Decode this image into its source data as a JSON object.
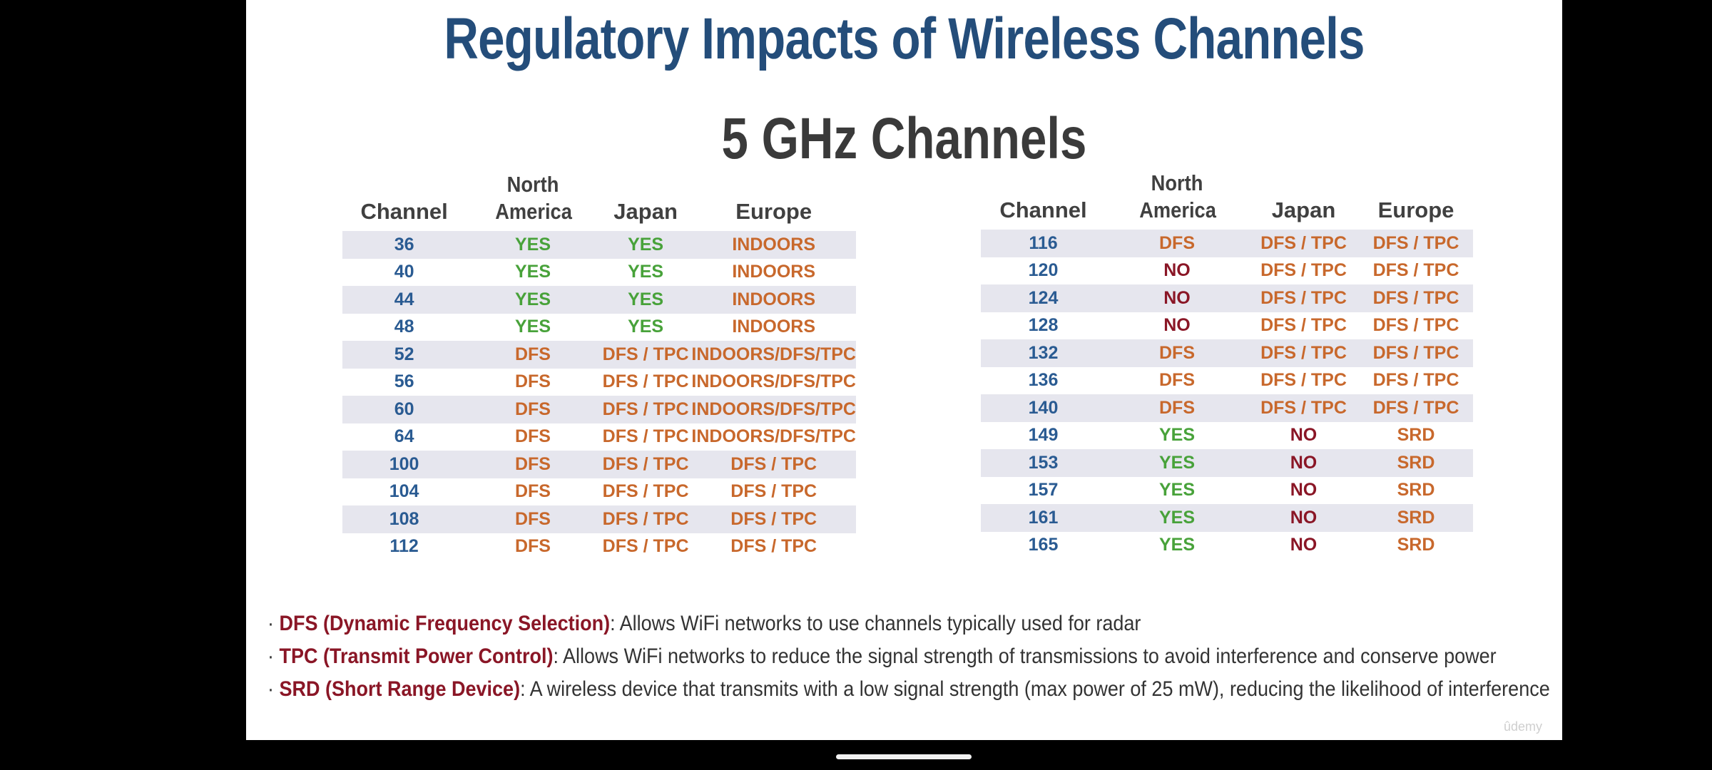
{
  "slide": {
    "title": "Regulatory Impacts of Wireless Channels",
    "subtitle": "5 GHz Channels",
    "watermark": "ûdemy"
  },
  "table_headers": {
    "channel": "Channel",
    "north_america": "North America",
    "japan": "Japan",
    "europe": "Europe"
  },
  "left_table": [
    {
      "channel": "36",
      "na": "YES",
      "jp": "YES",
      "eu": "INDOORS"
    },
    {
      "channel": "40",
      "na": "YES",
      "jp": "YES",
      "eu": "INDOORS"
    },
    {
      "channel": "44",
      "na": "YES",
      "jp": "YES",
      "eu": "INDOORS"
    },
    {
      "channel": "48",
      "na": "YES",
      "jp": "YES",
      "eu": "INDOORS"
    },
    {
      "channel": "52",
      "na": "DFS",
      "jp": "DFS / TPC",
      "eu": "INDOORS/DFS/TPC"
    },
    {
      "channel": "56",
      "na": "DFS",
      "jp": "DFS / TPC",
      "eu": "INDOORS/DFS/TPC"
    },
    {
      "channel": "60",
      "na": "DFS",
      "jp": "DFS / TPC",
      "eu": "INDOORS/DFS/TPC"
    },
    {
      "channel": "64",
      "na": "DFS",
      "jp": "DFS / TPC",
      "eu": "INDOORS/DFS/TPC"
    },
    {
      "channel": "100",
      "na": "DFS",
      "jp": "DFS / TPC",
      "eu": "DFS / TPC"
    },
    {
      "channel": "104",
      "na": "DFS",
      "jp": "DFS / TPC",
      "eu": "DFS / TPC"
    },
    {
      "channel": "108",
      "na": "DFS",
      "jp": "DFS / TPC",
      "eu": "DFS / TPC"
    },
    {
      "channel": "112",
      "na": "DFS",
      "jp": "DFS / TPC",
      "eu": "DFS / TPC"
    }
  ],
  "right_table": [
    {
      "channel": "116",
      "na": "DFS",
      "jp": "DFS / TPC",
      "eu": "DFS / TPC"
    },
    {
      "channel": "120",
      "na": "NO",
      "jp": "DFS / TPC",
      "eu": "DFS / TPC"
    },
    {
      "channel": "124",
      "na": "NO",
      "jp": "DFS / TPC",
      "eu": "DFS / TPC"
    },
    {
      "channel": "128",
      "na": "NO",
      "jp": "DFS / TPC",
      "eu": "DFS / TPC"
    },
    {
      "channel": "132",
      "na": "DFS",
      "jp": "DFS / TPC",
      "eu": "DFS / TPC"
    },
    {
      "channel": "136",
      "na": "DFS",
      "jp": "DFS / TPC",
      "eu": "DFS / TPC"
    },
    {
      "channel": "140",
      "na": "DFS",
      "jp": "DFS / TPC",
      "eu": "DFS / TPC"
    },
    {
      "channel": "149",
      "na": "YES",
      "jp": "NO",
      "eu": "SRD"
    },
    {
      "channel": "153",
      "na": "YES",
      "jp": "NO",
      "eu": "SRD"
    },
    {
      "channel": "157",
      "na": "YES",
      "jp": "NO",
      "eu": "SRD"
    },
    {
      "channel": "161",
      "na": "YES",
      "jp": "NO",
      "eu": "SRD"
    },
    {
      "channel": "165",
      "na": "YES",
      "jp": "NO",
      "eu": "SRD"
    }
  ],
  "legend": [
    {
      "term": "DFS (Dynamic Frequency Selection)",
      "definition": ": Allows WiFi networks to use channels typically used for radar"
    },
    {
      "term": "TPC (Transmit Power Control)",
      "definition": ": Allows WiFi networks to reduce the signal strength of transmissions to avoid interference and conserve power"
    },
    {
      "term": "SRD (Short Range Device)",
      "definition": ": A wireless device that transmits with a low signal strength (max power of 25 mW), reducing the likelihood of interference"
    }
  ],
  "colors": {
    "title": "#244d7a",
    "channel": "#2a5b92",
    "yes": "#48a23a",
    "dfs_tpc": "#c8682c",
    "no": "#8a1626",
    "row_shade": "#e6e6ee"
  }
}
